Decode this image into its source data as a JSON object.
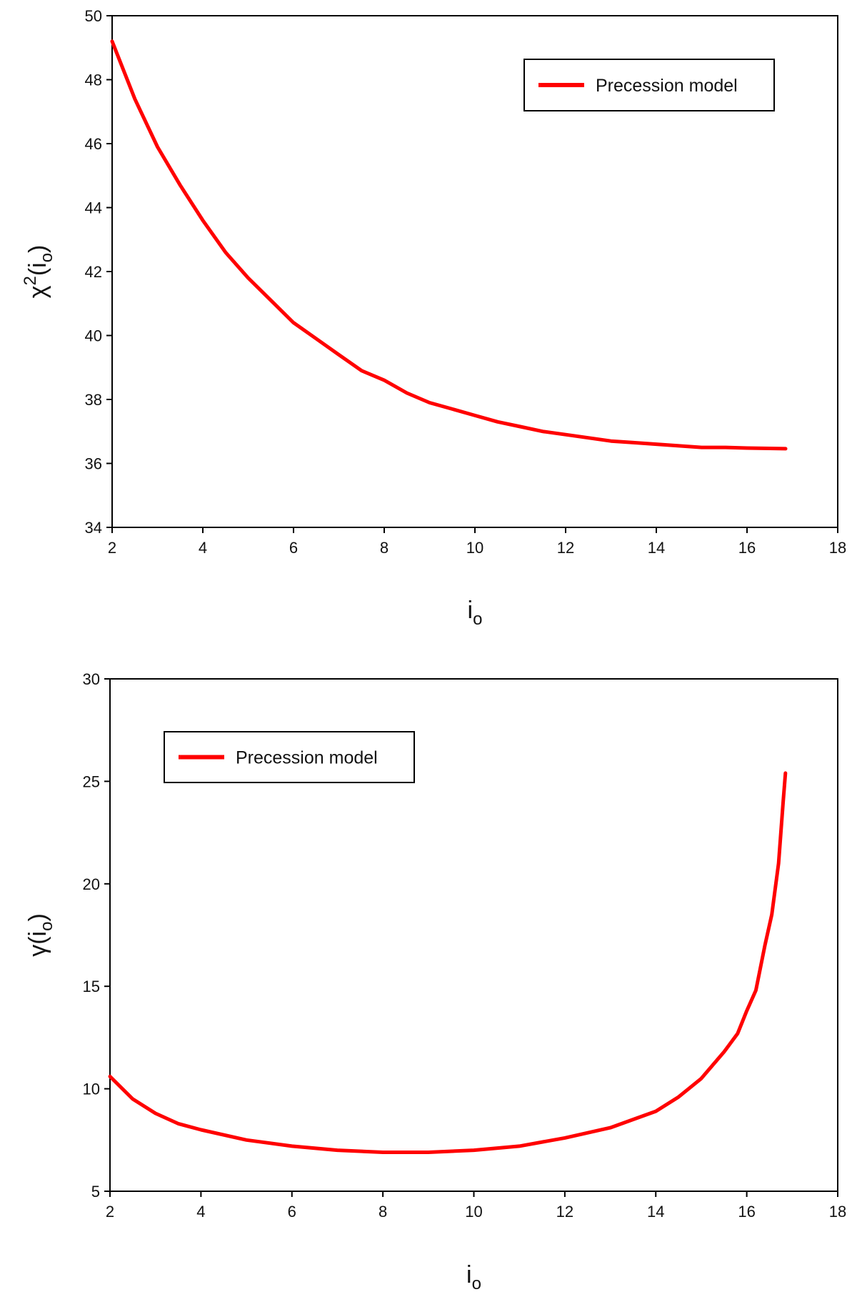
{
  "chart_data": [
    {
      "type": "line",
      "ylabel": {
        "main": "χ",
        "sup": "2",
        "open": "(i",
        "sub": "o",
        "close": ")"
      },
      "xlabel": {
        "main": "i",
        "sub": "o"
      },
      "xlim": [
        2,
        18
      ],
      "ylim": [
        34,
        50
      ],
      "xticks": [
        "2",
        "4",
        "6",
        "8",
        "10",
        "12",
        "14",
        "16",
        "18"
      ],
      "yticks": [
        "34",
        "36",
        "38",
        "40",
        "42",
        "44",
        "46",
        "48",
        "50"
      ],
      "legend": {
        "position": "top-right"
      },
      "series": [
        {
          "name": "Precession model",
          "color": "#ff0000",
          "x": [
            2.0,
            2.5,
            3.0,
            3.5,
            4.0,
            4.5,
            5.0,
            5.5,
            6.0,
            6.5,
            7.0,
            7.5,
            8.0,
            8.5,
            9.0,
            9.5,
            10.0,
            10.5,
            11.0,
            11.5,
            12.0,
            12.5,
            13.0,
            13.5,
            14.0,
            14.5,
            15.0,
            15.5,
            16.0,
            16.5,
            16.85
          ],
          "y": [
            49.2,
            47.4,
            45.9,
            44.7,
            43.6,
            42.6,
            41.8,
            41.1,
            40.4,
            39.9,
            39.4,
            38.9,
            38.6,
            38.2,
            37.9,
            37.7,
            37.5,
            37.3,
            37.15,
            37.0,
            36.9,
            36.8,
            36.7,
            36.65,
            36.6,
            36.55,
            36.5,
            36.5,
            36.48,
            36.47,
            36.46
          ]
        }
      ]
    },
    {
      "type": "line",
      "ylabel": {
        "main": "γ",
        "open": "(i",
        "sub": "o",
        "close": ")"
      },
      "xlabel": {
        "main": "i",
        "sub": "o"
      },
      "xlim": [
        2,
        18
      ],
      "ylim": [
        5,
        30
      ],
      "xticks": [
        "2",
        "4",
        "6",
        "8",
        "10",
        "12",
        "14",
        "16",
        "18"
      ],
      "yticks": [
        "5",
        "10",
        "15",
        "20",
        "25",
        "30"
      ],
      "legend": {
        "position": "top-left"
      },
      "series": [
        {
          "name": "Precession model",
          "color": "#ff0000",
          "x": [
            2.0,
            2.5,
            3.0,
            3.5,
            4.0,
            5.0,
            6.0,
            7.0,
            8.0,
            8.5,
            9.0,
            10.0,
            11.0,
            12.0,
            13.0,
            13.5,
            14.0,
            14.5,
            15.0,
            15.5,
            15.8,
            16.0,
            16.2,
            16.4,
            16.55,
            16.7,
            16.8,
            16.85
          ],
          "y": [
            10.6,
            9.5,
            8.8,
            8.3,
            8.0,
            7.5,
            7.2,
            7.0,
            6.9,
            6.9,
            6.9,
            7.0,
            7.2,
            7.6,
            8.1,
            8.5,
            8.9,
            9.6,
            10.5,
            11.8,
            12.7,
            13.8,
            14.8,
            17.0,
            18.5,
            21.0,
            24.0,
            25.4
          ]
        }
      ]
    }
  ]
}
